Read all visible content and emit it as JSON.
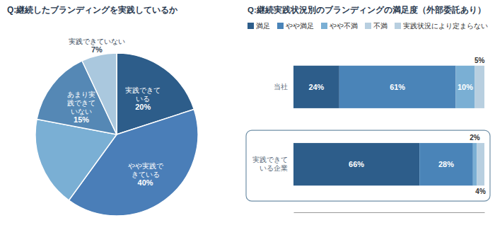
{
  "chart_data": [
    {
      "type": "pie",
      "title": "Q:継続したブランディングを実践しているか",
      "categories": [
        "実践できて\nいる",
        "やや実践で\nきている",
        null,
        "あまり実\n践できて\nいない",
        "実践できていない"
      ],
      "values": [
        20,
        40,
        18,
        15,
        7
      ],
      "value_labels": [
        "20%",
        "40%",
        null,
        "15%",
        "7%"
      ],
      "colors": [
        "#2d5d8a",
        "#4a7eb8",
        "#7aafd4",
        "#5588b5",
        "#aac8de"
      ],
      "data_labels": true
    },
    {
      "type": "bar",
      "title": "Q:継続実践状況別のブランディングの満足度（外部委託あり）",
      "orientation": "horizontal",
      "stacked": true,
      "categories": [
        "当社",
        "実践できて\nいる企業"
      ],
      "series": [
        {
          "name": "満足",
          "color": "#2d5d8a",
          "values": [
            24,
            66
          ],
          "value_labels": [
            "24%",
            "66%"
          ]
        },
        {
          "name": "やや満足",
          "color": "#4a84b8",
          "values": [
            61,
            28
          ],
          "value_labels": [
            "61%",
            "28%"
          ]
        },
        {
          "name": "やや不満",
          "color": "#7aafd4",
          "values": [
            10,
            2
          ],
          "value_labels": [
            "10%",
            "2%"
          ]
        },
        {
          "name": "不満",
          "color": "#b8cfe0",
          "values": [
            5,
            4
          ],
          "value_labels": [
            "5%",
            "4%"
          ]
        },
        {
          "name": "実践状況により定まらない",
          "color": "#b8cfe0",
          "values": [
            null,
            null
          ]
        }
      ],
      "xlim": [
        0,
        100
      ],
      "tick_labels": false,
      "data_labels": true,
      "legend": "upper left"
    }
  ]
}
